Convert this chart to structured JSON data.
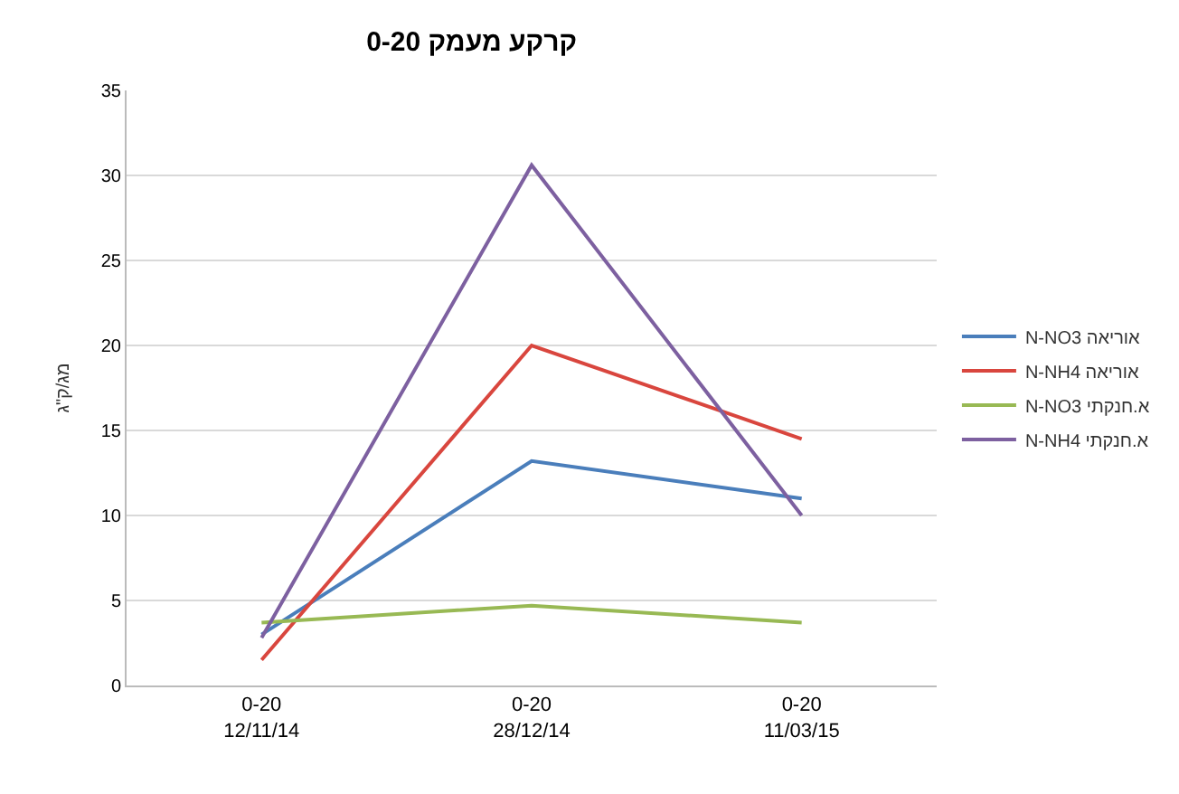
{
  "chart_data": {
    "type": "line",
    "title": "0-20 קרקע מעמק",
    "ylabel": "מג/ק\"ג",
    "categories": [
      "0-20\n12/11/14",
      "0-20\n28/12/14",
      "0-20\n11/03/15"
    ],
    "series": [
      {
        "name": "N-NO3 אוריאה",
        "color": "#4a7ebb",
        "values": [
          3.0,
          13.2,
          11.0
        ]
      },
      {
        "name": "N-NH4 אוריאה",
        "color": "#d9463e",
        "values": [
          1.5,
          20.0,
          14.5
        ]
      },
      {
        "name": "N-NO3 א.חנקתי",
        "color": "#98b954",
        "values": [
          3.7,
          4.7,
          3.7
        ]
      },
      {
        "name": "N-NH4 א.חנקתי",
        "color": "#7d60a0",
        "values": [
          2.8,
          30.6,
          10.0
        ]
      }
    ],
    "ylim": [
      0,
      35
    ],
    "yticks": [
      0,
      5,
      10,
      15,
      20,
      25,
      30,
      35
    ],
    "grid": "y",
    "legend": "right",
    "marker": "none",
    "line_style": "solid"
  }
}
